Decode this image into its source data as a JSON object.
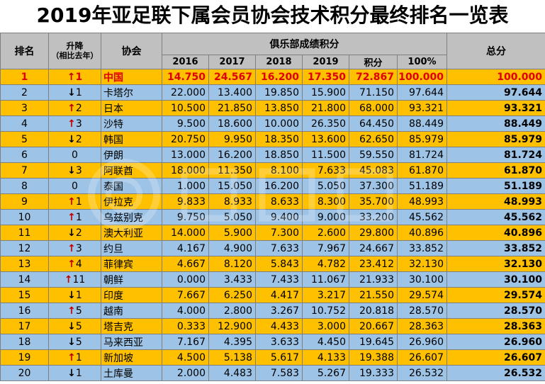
{
  "title": "2019年亚足联下属会员协会技术积分最终排名一览表",
  "headers": {
    "rank": "排名",
    "change": "升降",
    "change_sub": "（相比去年）",
    "association": "协会",
    "club_points": "俱乐部成绩积分",
    "years": [
      "2016",
      "2017",
      "2018",
      "2019"
    ],
    "points": "积分",
    "percent": "100%",
    "total": "总分"
  },
  "colors": {
    "yellow": "#ffc000",
    "blue": "#9dc3e6",
    "header": "#c0c0c0",
    "red": "#e00000"
  },
  "rows": [
    {
      "rank": "1",
      "dir": "up",
      "change": "1",
      "name": "中国",
      "y2016": "14.750",
      "y2017": "24.567",
      "y2018": "16.200",
      "y2019": "17.350",
      "points": "72.867",
      "pct": "100.000",
      "total": "100.000"
    },
    {
      "rank": "2",
      "dir": "down",
      "change": "1",
      "name": "卡塔尔",
      "y2016": "22.000",
      "y2017": "13.400",
      "y2018": "19.850",
      "y2019": "15.900",
      "points": "71.150",
      "pct": "97.644",
      "total": "97.644"
    },
    {
      "rank": "3",
      "dir": "up",
      "change": "2",
      "name": "日本",
      "y2016": "10.500",
      "y2017": "21.850",
      "y2018": "13.850",
      "y2019": "21.800",
      "points": "68.000",
      "pct": "93.321",
      "total": "93.321"
    },
    {
      "rank": "4",
      "dir": "up",
      "change": "3",
      "name": "沙特",
      "y2016": "9.500",
      "y2017": "18.600",
      "y2018": "10.000",
      "y2019": "26.350",
      "points": "64.450",
      "pct": "88.449",
      "total": "88.449"
    },
    {
      "rank": "5",
      "dir": "down",
      "change": "2",
      "name": "韩国",
      "y2016": "20.750",
      "y2017": "9.950",
      "y2018": "18.350",
      "y2019": "13.600",
      "points": "62.650",
      "pct": "85.979",
      "total": "85.979"
    },
    {
      "rank": "6",
      "dir": "none",
      "change": "0",
      "name": "伊朗",
      "y2016": "13.000",
      "y2017": "16.200",
      "y2018": "18.850",
      "y2019": "11.500",
      "points": "59.550",
      "pct": "81.724",
      "total": "81.724"
    },
    {
      "rank": "7",
      "dir": "down",
      "change": "3",
      "name": "阿联酋",
      "y2016": "18.000",
      "y2017": "11.350",
      "y2018": "8.100",
      "y2019": "7.633",
      "points": "45.083",
      "pct": "61.870",
      "total": "61.870"
    },
    {
      "rank": "8",
      "dir": "none",
      "change": "0",
      "name": "泰国",
      "y2016": "1.000",
      "y2017": "15.050",
      "y2018": "16.200",
      "y2019": "5.050",
      "points": "37.300",
      "pct": "51.189",
      "total": "51.189"
    },
    {
      "rank": "9",
      "dir": "up",
      "change": "1",
      "name": "伊拉克",
      "y2016": "9.833",
      "y2017": "8.933",
      "y2018": "8.633",
      "y2019": "8.300",
      "points": "35.700",
      "pct": "48.993",
      "total": "48.993"
    },
    {
      "rank": "10",
      "dir": "up",
      "change": "1",
      "name": "乌兹别克",
      "y2016": "9.750",
      "y2017": "5.050",
      "y2018": "9.400",
      "y2019": "9.000",
      "points": "33.200",
      "pct": "45.562",
      "total": "45.562"
    },
    {
      "rank": "11",
      "dir": "down",
      "change": "2",
      "name": "澳大利亚",
      "y2016": "14.000",
      "y2017": "5.900",
      "y2018": "7.300",
      "y2019": "2.600",
      "points": "29.800",
      "pct": "40.896",
      "total": "40.896"
    },
    {
      "rank": "12",
      "dir": "up",
      "change": "3",
      "name": "约旦",
      "y2016": "4.167",
      "y2017": "4.900",
      "y2018": "7.633",
      "y2019": "7.967",
      "points": "24.667",
      "pct": "33.852",
      "total": "33.852"
    },
    {
      "rank": "13",
      "dir": "up",
      "change": "4",
      "name": "菲律宾",
      "y2016": "4.667",
      "y2017": "8.120",
      "y2018": "5.843",
      "y2019": "4.782",
      "points": "23.412",
      "pct": "32.130",
      "total": "32.130"
    },
    {
      "rank": "14",
      "dir": "up",
      "change": "11",
      "name": "朝鲜",
      "y2016": "0.000",
      "y2017": "3.433",
      "y2018": "7.433",
      "y2019": "11.067",
      "points": "21.933",
      "pct": "30.100",
      "total": "30.100"
    },
    {
      "rank": "15",
      "dir": "down",
      "change": "1",
      "name": "印度",
      "y2016": "7.667",
      "y2017": "6.250",
      "y2018": "4.417",
      "y2019": "3.217",
      "points": "21.550",
      "pct": "29.574",
      "total": "29.574"
    },
    {
      "rank": "16",
      "dir": "up",
      "change": "5",
      "name": "越南",
      "y2016": "4.000",
      "y2017": "2.800",
      "y2018": "3.267",
      "y2019": "10.752",
      "points": "20.818",
      "pct": "28.570",
      "total": "28.570"
    },
    {
      "rank": "17",
      "dir": "down",
      "change": "5",
      "name": "塔吉克",
      "y2016": "0.333",
      "y2017": "12.900",
      "y2018": "4.433",
      "y2019": "3.000",
      "points": "20.667",
      "pct": "28.363",
      "total": "28.363"
    },
    {
      "rank": "18",
      "dir": "down",
      "change": "5",
      "name": "马来西亚",
      "y2016": "7.167",
      "y2017": "4.395",
      "y2018": "3.633",
      "y2019": "4.450",
      "points": "19.645",
      "pct": "26.960",
      "total": "26.960"
    },
    {
      "rank": "19",
      "dir": "up",
      "change": "1",
      "name": "新加坡",
      "y2016": "4.500",
      "y2017": "5.138",
      "y2018": "5.617",
      "y2019": "4.133",
      "points": "19.388",
      "pct": "26.607",
      "total": "26.607"
    },
    {
      "rank": "20",
      "dir": "down",
      "change": "1",
      "name": "土库曼",
      "y2016": "2.000",
      "y2017": "4.483",
      "y2018": "7.583",
      "y2019": "5.267",
      "points": "19.333",
      "pct": "26.532",
      "total": "26.532"
    }
  ]
}
